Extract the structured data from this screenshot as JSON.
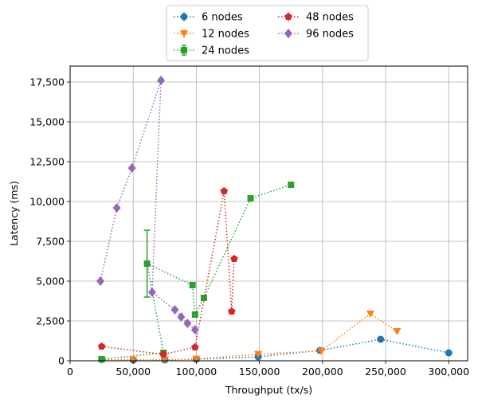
{
  "chart_data": {
    "type": "scatter",
    "title": "",
    "xlabel": "Throughput (tx/s)",
    "ylabel": "Latency (ms)",
    "xlim": [
      0,
      315000
    ],
    "ylim": [
      0,
      18500
    ],
    "xticks": [
      0,
      50000,
      100000,
      150000,
      200000,
      250000,
      300000
    ],
    "xtick_labels": [
      "0",
      "50,000",
      "100,000",
      "150,000",
      "200,000",
      "250,000",
      "300,000"
    ],
    "yticks": [
      0,
      2500,
      5000,
      7500,
      10000,
      12500,
      15000,
      17500
    ],
    "ytick_labels": [
      "0",
      "2,500",
      "5,000",
      "7,500",
      "10,000",
      "12,500",
      "15,000",
      "17,500"
    ],
    "grid": true,
    "legend_position": "top-center",
    "line_style": "dotted",
    "series": [
      {
        "name": "6 nodes",
        "color": "#1f77b4",
        "marker": "circle",
        "points": [
          {
            "x": 25000,
            "y": 80
          },
          {
            "x": 50000,
            "y": 40
          },
          {
            "x": 75000,
            "y": 50
          },
          {
            "x": 100000,
            "y": 100
          },
          {
            "x": 149000,
            "y": 250
          },
          {
            "x": 198000,
            "y": 650
          },
          {
            "x": 246000,
            "y": 1350
          },
          {
            "x": 300000,
            "y": 500
          }
        ]
      },
      {
        "name": "12 nodes",
        "color": "#ff7f0e",
        "marker": "triangle-down",
        "points": [
          {
            "x": 25000,
            "y": 60
          },
          {
            "x": 50000,
            "y": 60
          },
          {
            "x": 75000,
            "y": 70
          },
          {
            "x": 100000,
            "y": 110
          },
          {
            "x": 149000,
            "y": 420
          },
          {
            "x": 199000,
            "y": 620
          },
          {
            "x": 238000,
            "y": 2950
          },
          {
            "x": 259000,
            "y": 1850
          }
        ]
      },
      {
        "name": "24 nodes",
        "color": "#2ca02c",
        "marker": "square",
        "points": [
          {
            "x": 25000,
            "y": 100
          },
          {
            "x": 74000,
            "y": 500
          },
          {
            "x": 61000,
            "y": 6100,
            "err": 2100
          },
          {
            "x": 97000,
            "y": 4750
          },
          {
            "x": 99000,
            "y": 2900
          },
          {
            "x": 106000,
            "y": 3950
          },
          {
            "x": 143000,
            "y": 10200
          },
          {
            "x": 175000,
            "y": 11050
          }
        ]
      },
      {
        "name": "48 nodes",
        "color": "#d62728",
        "marker": "pentagon",
        "points": [
          {
            "x": 25000,
            "y": 900
          },
          {
            "x": 74000,
            "y": 400
          },
          {
            "x": 99000,
            "y": 850
          },
          {
            "x": 122000,
            "y": 10650
          },
          {
            "x": 128000,
            "y": 3100
          },
          {
            "x": 130000,
            "y": 6400
          }
        ]
      },
      {
        "name": "96 nodes",
        "color": "#9467bd",
        "marker": "diamond",
        "points": [
          {
            "x": 24000,
            "y": 5000
          },
          {
            "x": 37000,
            "y": 9600
          },
          {
            "x": 49000,
            "y": 12100
          },
          {
            "x": 72000,
            "y": 17600
          },
          {
            "x": 65000,
            "y": 4300
          },
          {
            "x": 83000,
            "y": 3200
          },
          {
            "x": 88000,
            "y": 2750
          },
          {
            "x": 93000,
            "y": 2350
          },
          {
            "x": 99000,
            "y": 1950
          }
        ]
      }
    ]
  }
}
